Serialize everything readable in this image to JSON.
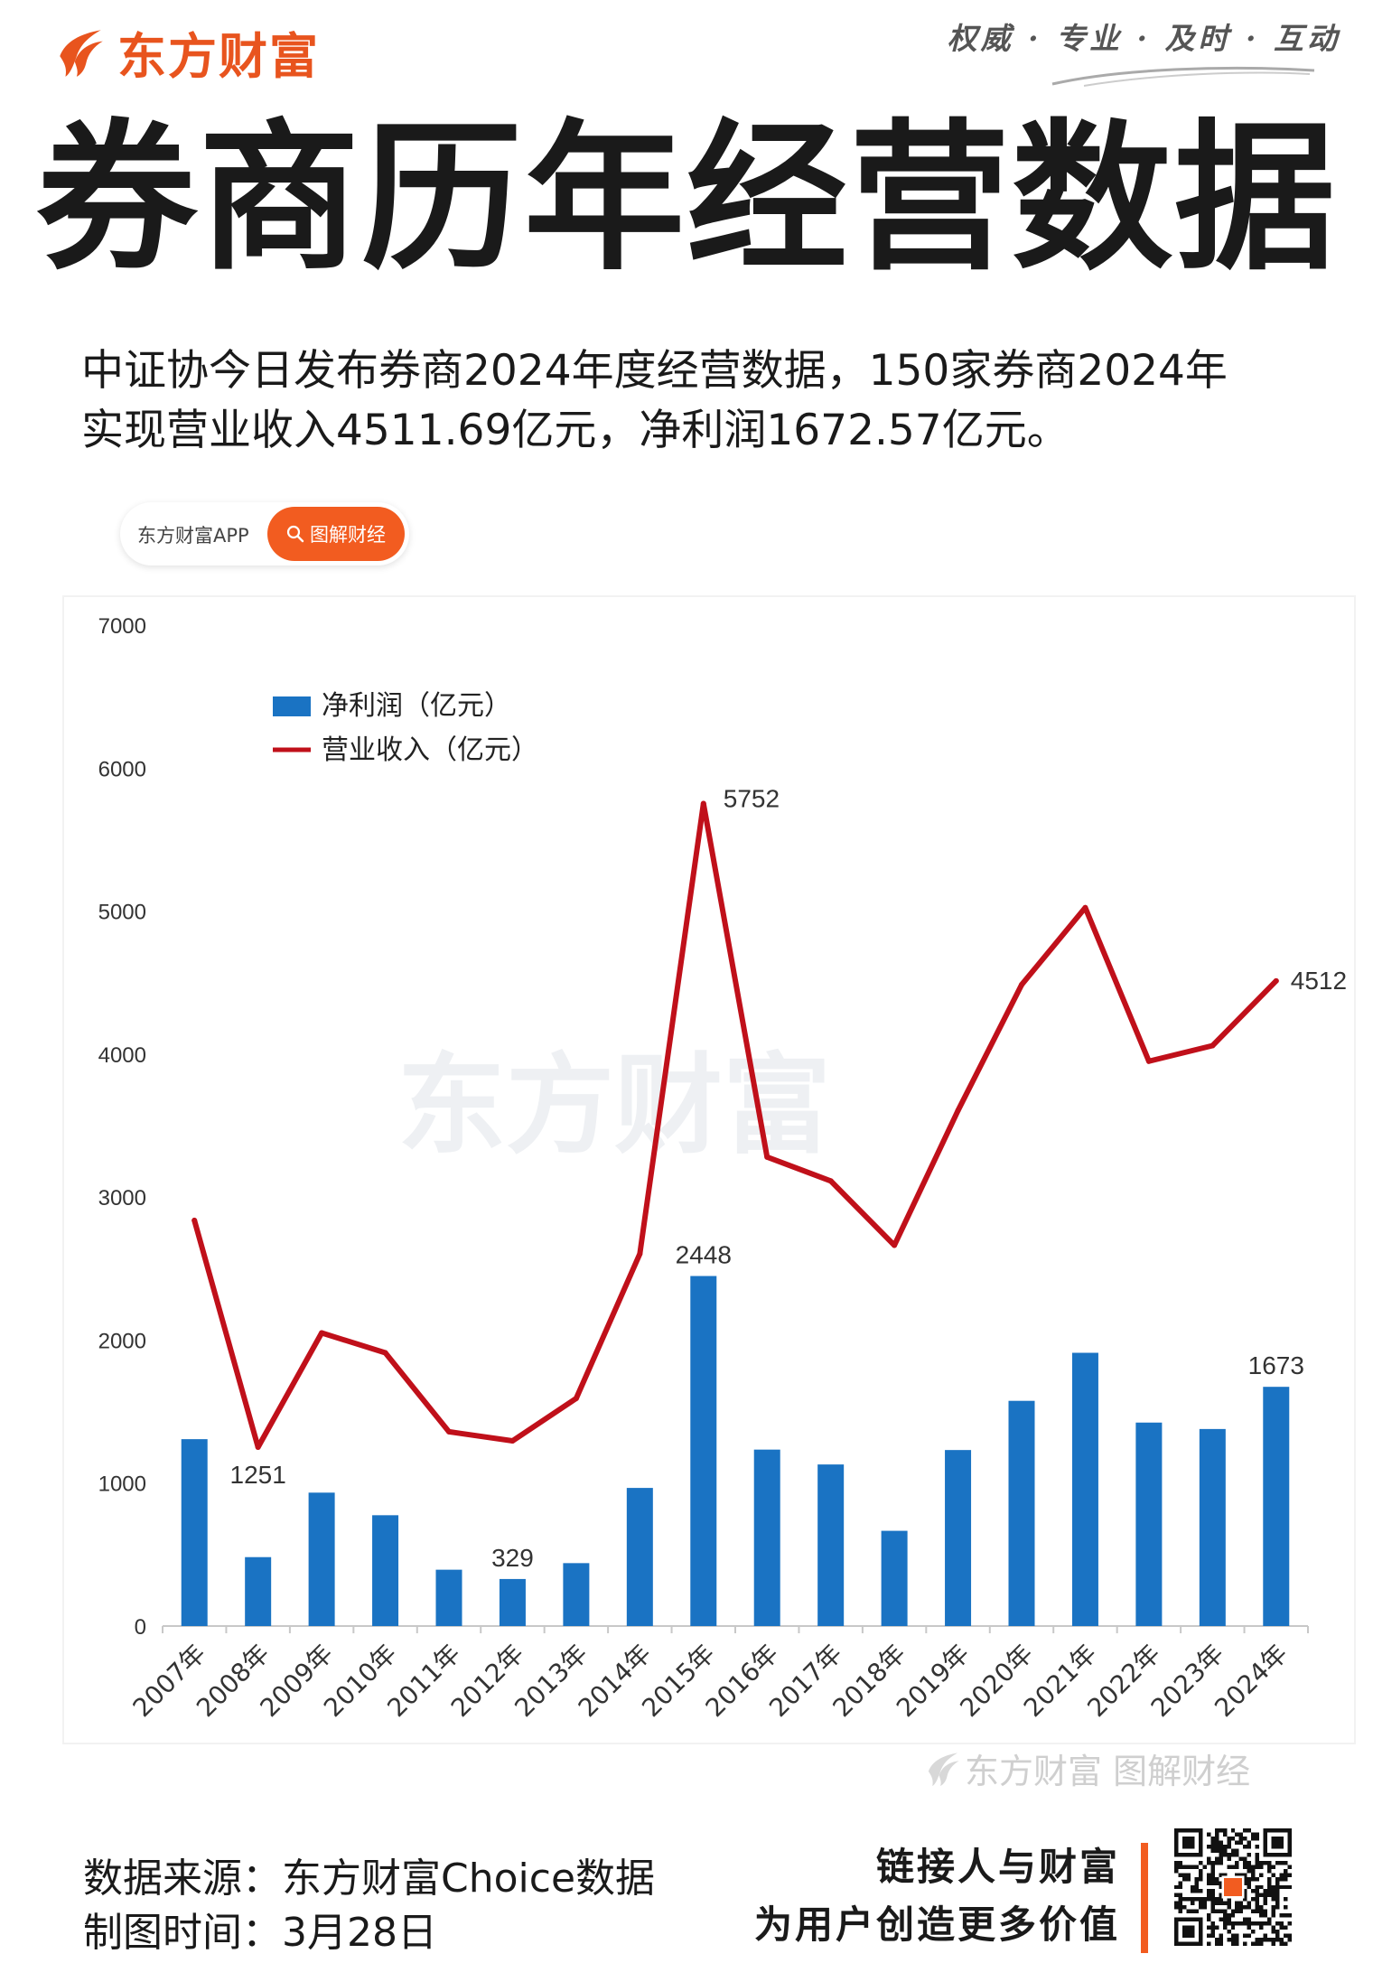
{
  "header": {
    "brand": "东方财富",
    "slogan": "权威 · 专业 · 及时 · 互动",
    "title": "券商历年经营数据",
    "summary_line1": "中证协今日发布券商2024年度经营数据，150家券商2024年",
    "summary_line2": "实现营业收入4511.69亿元，净利润1672.57亿元。"
  },
  "search": {
    "brand_label": "东方财富APP",
    "button_label": "图解财经"
  },
  "chart_data": {
    "type": "bar",
    "categories": [
      "2007年",
      "2008年",
      "2009年",
      "2010年",
      "2011年",
      "2012年",
      "2013年",
      "2014年",
      "2015年",
      "2016年",
      "2017年",
      "2018年",
      "2019年",
      "2020年",
      "2021年",
      "2022年",
      "2023年",
      "2024年"
    ],
    "series": [
      {
        "name": "净利润（亿元）",
        "kind": "bar",
        "color": "#1a73c3",
        "values": [
          1307,
          482,
          933,
          775,
          394,
          329,
          440,
          966,
          2448,
          1234,
          1130,
          666,
          1231,
          1575,
          1911,
          1423,
          1378,
          1673
        ]
      },
      {
        "name": "营业收入（亿元）",
        "kind": "line",
        "color": "#c0101a",
        "values": [
          2837,
          1251,
          2050,
          1911,
          1359,
          1295,
          1592,
          2603,
          5752,
          3280,
          3113,
          2663,
          3605,
          4485,
          5024,
          3950,
          4059,
          4512
        ]
      }
    ],
    "data_labels": {
      "bar": {
        "2012年": "329",
        "2015年": "2448",
        "2024年": "1673"
      },
      "line": {
        "2008年": "1251",
        "2015年": "5752",
        "2024年": "4512"
      }
    },
    "yticks": [
      "0",
      "1000",
      "2000",
      "3000",
      "4000",
      "5000",
      "6000",
      "7000"
    ],
    "ylim": [
      0,
      7000
    ],
    "legend_position": "top-left",
    "grid": false,
    "watermark": "东方财富"
  },
  "watermark_bottom": "东方财富 图解财经",
  "footer": {
    "source": "数据来源：东方财富Choice数据",
    "date": "制图时间：3月28日",
    "tagline1": "链接人与财富",
    "tagline2": "为用户创造更多价值"
  },
  "colors": {
    "accent": "#f25c20",
    "bar": "#1a73c3",
    "line": "#c0101a"
  }
}
